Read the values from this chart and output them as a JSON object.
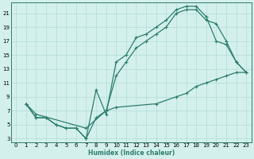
{
  "xlabel": "Humidex (Indice chaleur)",
  "background_color": "#d4f0ec",
  "line_color": "#2d7d6e",
  "grid_color": "#b0ddd8",
  "xlim": [
    -0.5,
    23.5
  ],
  "ylim": [
    2.5,
    22.5
  ],
  "xticks": [
    0,
    1,
    2,
    3,
    4,
    5,
    6,
    7,
    8,
    9,
    10,
    11,
    12,
    13,
    14,
    15,
    16,
    17,
    18,
    19,
    20,
    21,
    22,
    23
  ],
  "yticks": [
    3,
    5,
    7,
    9,
    11,
    13,
    15,
    17,
    19,
    21
  ],
  "line1_x": [
    1,
    2,
    3,
    4,
    5,
    6,
    7,
    8,
    9,
    10,
    11,
    12,
    13,
    14,
    15,
    16,
    17,
    18,
    19,
    20,
    21,
    22,
    23
  ],
  "line1_y": [
    8,
    6,
    6,
    5,
    4.5,
    4.5,
    3,
    10,
    6.5,
    14,
    15,
    17.5,
    18,
    19,
    20,
    21.5,
    22,
    22,
    20.5,
    17,
    16.5,
    14,
    12.5
  ],
  "line2_x": [
    1,
    2,
    3,
    4,
    5,
    6,
    7,
    8,
    9,
    10,
    11,
    12,
    13,
    14,
    15,
    16,
    17,
    18,
    19,
    20,
    21,
    22,
    23
  ],
  "line2_y": [
    8,
    6,
    6,
    5,
    4.5,
    4.5,
    3,
    6,
    7,
    12,
    14,
    16,
    17,
    18,
    19,
    21,
    21.5,
    21.5,
    20,
    19.5,
    17,
    14,
    12.5
  ],
  "line3_x": [
    1,
    2,
    7,
    9,
    10,
    14,
    16,
    17,
    18,
    19,
    20,
    21,
    22,
    23
  ],
  "line3_y": [
    8,
    6.5,
    4.5,
    7,
    7.5,
    8,
    9,
    9.5,
    10.5,
    11,
    11.5,
    12,
    12.5,
    12.5
  ]
}
